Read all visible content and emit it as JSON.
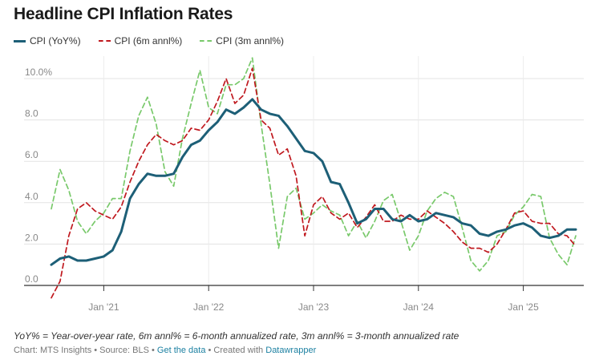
{
  "title": "Headline CPI Inflation Rates",
  "legend": [
    {
      "label": "CPI (YoY%)",
      "color": "#1d5f77",
      "style": "solid"
    },
    {
      "label": "CPI (6m annl%)",
      "color": "#c0191f",
      "style": "dashed"
    },
    {
      "label": "CPI (3m annl%)",
      "color": "#79c96b",
      "style": "dashed"
    }
  ],
  "footnote": "YoY% = Year-over-year rate, 6m annl% = 6-month annualized rate, 3m annl% = 3-month annualized rate",
  "credits": {
    "chart_by": "Chart: MTS Insights",
    "source": "Source: BLS",
    "get_data": "Get the data",
    "created_with_prefix": "Created with",
    "tool": "Datawrapper",
    "sep": " • "
  },
  "chart_data": {
    "type": "line",
    "title": "Headline CPI Inflation Rates",
    "xlabel": "",
    "ylabel": "",
    "ylim": [
      0,
      10.0
    ],
    "yticks": [
      0,
      2.0,
      4.0,
      6.0,
      8.0,
      10.0
    ],
    "ytick_labels": [
      "0.0",
      "2.0",
      "4.0",
      "6.0",
      "8.0",
      "10.0%"
    ],
    "start_month": "2020-07",
    "xticks": [
      {
        "label": "Jan '21",
        "index": 6
      },
      {
        "label": "Jan '22",
        "index": 18
      },
      {
        "label": "Jan '23",
        "index": 30
      },
      {
        "label": "Jan '24",
        "index": 42
      },
      {
        "label": "Jan '25",
        "index": 54
      }
    ],
    "grid": true,
    "series": [
      {
        "name": "CPI (YoY%)",
        "color": "#1d5f77",
        "style": "solid",
        "values": [
          1.0,
          1.3,
          1.4,
          1.2,
          1.2,
          1.3,
          1.4,
          1.7,
          2.6,
          4.2,
          4.9,
          5.4,
          5.3,
          5.3,
          5.4,
          6.2,
          6.8,
          7.0,
          7.5,
          7.9,
          8.5,
          8.3,
          8.6,
          9.0,
          8.5,
          8.3,
          8.2,
          7.7,
          7.1,
          6.5,
          6.4,
          6.0,
          5.0,
          4.9,
          4.0,
          3.0,
          3.2,
          3.7,
          3.7,
          3.2,
          3.1,
          3.4,
          3.1,
          3.2,
          3.5,
          3.4,
          3.3,
          3.0,
          2.9,
          2.5,
          2.4,
          2.6,
          2.7,
          2.9,
          3.0,
          2.8,
          2.4,
          2.3,
          2.4,
          2.7,
          2.7
        ]
      },
      {
        "name": "CPI (6m annl%)",
        "color": "#c0191f",
        "style": "dashed",
        "values": [
          -0.6,
          0.2,
          2.4,
          3.7,
          4.0,
          3.6,
          3.4,
          3.2,
          3.8,
          5.0,
          6.0,
          6.8,
          7.3,
          7.0,
          6.8,
          7.0,
          7.6,
          7.5,
          8.0,
          8.9,
          10.0,
          8.8,
          9.2,
          10.5,
          8.0,
          7.6,
          6.3,
          6.6,
          5.3,
          2.4,
          3.9,
          4.3,
          3.5,
          3.2,
          3.5,
          2.8,
          3.3,
          3.9,
          3.1,
          3.1,
          3.4,
          3.2,
          3.2,
          3.6,
          3.3,
          3.0,
          2.6,
          2.1,
          1.8,
          1.8,
          1.6,
          2.0,
          2.7,
          3.5,
          3.6,
          3.1,
          3.0,
          3.0,
          2.5,
          2.4,
          1.9
        ]
      },
      {
        "name": "CPI (3m annl%)",
        "color": "#79c96b",
        "style": "dashed",
        "values": [
          3.7,
          5.6,
          4.6,
          3.1,
          2.5,
          3.1,
          3.5,
          4.2,
          4.2,
          6.5,
          8.2,
          9.1,
          7.8,
          5.5,
          4.8,
          7.1,
          8.8,
          10.4,
          8.6,
          8.3,
          9.7,
          9.7,
          10.0,
          11.0,
          7.8,
          4.9,
          1.8,
          4.3,
          4.7,
          3.2,
          3.5,
          3.9,
          3.6,
          3.4,
          2.4,
          3.1,
          2.3,
          3.1,
          4.1,
          4.4,
          3.1,
          1.7,
          2.4,
          3.6,
          4.2,
          4.5,
          4.3,
          2.8,
          1.2,
          0.7,
          1.2,
          2.4,
          2.6,
          3.4,
          3.8,
          4.4,
          4.3,
          2.3,
          1.5,
          1.0,
          2.4
        ]
      }
    ]
  }
}
